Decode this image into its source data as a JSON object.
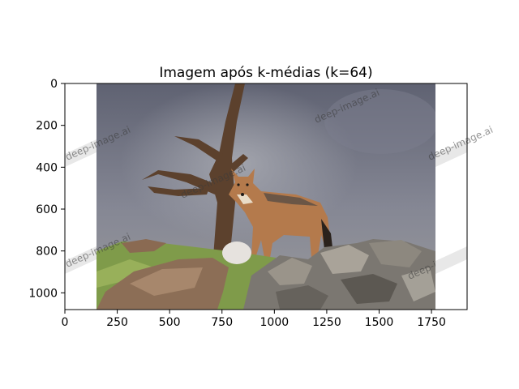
{
  "figure": {
    "title": "Imagem após k-médias (k=64)",
    "x_ticks": [
      "0",
      "250",
      "500",
      "750",
      "1000",
      "1250",
      "1500",
      "1750"
    ],
    "y_ticks": [
      "0",
      "200",
      "400",
      "600",
      "800",
      "1000"
    ],
    "watermark_text": "deep-image.ai"
  },
  "image": {
    "subject": "jackal standing on rocks in front of a dead tree",
    "colors": {
      "sky_top": "#6b6f80",
      "sky_bottom": "#8a8c96",
      "tree": "#5a3e2c",
      "jackal": "#b07548",
      "grass": "#7e9a4a",
      "rock": "#7a7670"
    }
  }
}
